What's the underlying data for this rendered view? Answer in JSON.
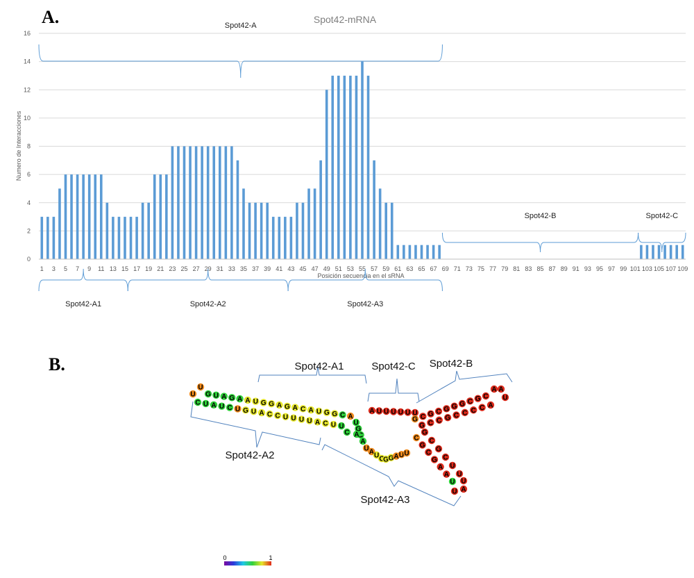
{
  "panels": {
    "a": "A.",
    "b": "B."
  },
  "chart_data": {
    "type": "bar",
    "title": "Spot42-mRNA",
    "xlabel": "Posición secuencia en el sRNA",
    "ylabel": "Numero de Interacciones",
    "ylim": [
      0,
      16
    ],
    "yticks": [
      0,
      2,
      4,
      6,
      8,
      10,
      12,
      14,
      16
    ],
    "grid": true,
    "color": "#5b9bd5",
    "x": [
      1,
      2,
      3,
      4,
      5,
      6,
      7,
      8,
      9,
      10,
      11,
      12,
      13,
      14,
      15,
      16,
      17,
      18,
      19,
      20,
      21,
      22,
      23,
      24,
      25,
      26,
      27,
      28,
      29,
      30,
      31,
      32,
      33,
      34,
      35,
      36,
      37,
      38,
      39,
      40,
      41,
      42,
      43,
      44,
      45,
      46,
      47,
      48,
      49,
      50,
      51,
      52,
      53,
      54,
      55,
      56,
      57,
      58,
      59,
      60,
      61,
      62,
      63,
      64,
      65,
      66,
      67,
      68,
      69,
      70,
      71,
      72,
      73,
      74,
      75,
      76,
      77,
      78,
      79,
      80,
      81,
      82,
      83,
      84,
      85,
      86,
      87,
      88,
      89,
      90,
      91,
      92,
      93,
      94,
      95,
      96,
      97,
      98,
      99,
      100,
      101,
      102,
      103,
      104,
      105,
      106,
      107,
      108,
      109
    ],
    "values": [
      3,
      3,
      3,
      5,
      6,
      6,
      6,
      6,
      6,
      6,
      6,
      4,
      3,
      3,
      3,
      3,
      3,
      4,
      4,
      6,
      6,
      6,
      8,
      8,
      8,
      8,
      8,
      8,
      8,
      8,
      8,
      8,
      8,
      7,
      5,
      4,
      4,
      4,
      4,
      3,
      3,
      3,
      3,
      4,
      4,
      5,
      5,
      7,
      12,
      13,
      13,
      13,
      13,
      13,
      14,
      13,
      7,
      5,
      4,
      4,
      1,
      1,
      1,
      1,
      1,
      1,
      1,
      1,
      0,
      0,
      0,
      0,
      0,
      0,
      0,
      0,
      0,
      0,
      0,
      0,
      0,
      0,
      0,
      0,
      0,
      0,
      0,
      0,
      0,
      0,
      0,
      0,
      0,
      0,
      0,
      0,
      0,
      0,
      0,
      0,
      0,
      1,
      1,
      1,
      1,
      1,
      1,
      1,
      1
    ],
    "xtick_labels": [
      "1",
      "3",
      "5",
      "7",
      "9",
      "11",
      "13",
      "15",
      "17",
      "19",
      "21",
      "23",
      "25",
      "27",
      "29",
      "31",
      "33",
      "35",
      "37",
      "39",
      "41",
      "43",
      "45",
      "47",
      "49",
      "51",
      "53",
      "55",
      "57",
      "59",
      "61",
      "63",
      "65",
      "67",
      "69",
      "71",
      "73",
      "75",
      "77",
      "79",
      "81",
      "83",
      "85",
      "87",
      "89",
      "91",
      "93",
      "95",
      "97",
      "99",
      "101",
      "103",
      "105",
      "107",
      "109"
    ],
    "annotations": {
      "top": [
        {
          "label": "Spot42-A",
          "from": 1,
          "to": 68
        }
      ],
      "middle": [
        {
          "label": "Spot42-B",
          "from": 69,
          "to": 101
        },
        {
          "label": "Spot42-C",
          "from": 102,
          "to": 109
        }
      ],
      "bottom": [
        {
          "label": "Spot42-A1",
          "from": 1,
          "to": 15
        },
        {
          "label": "Spot42-A2",
          "from": 16,
          "to": 42
        },
        {
          "label": "Spot42-A3",
          "from": 43,
          "to": 68
        }
      ]
    }
  },
  "structure": {
    "labels": {
      "a1": "Spot42-A1",
      "a2": "Spot42-A2",
      "a3": "Spot42-A3",
      "b": "Spot42-B",
      "c": "Spot42-C"
    },
    "scale": {
      "min": "0",
      "max": "1"
    },
    "colors": {
      "red": "#dd2a1b",
      "orange": "#f08a1c",
      "yellow": "#e6e62a",
      "green": "#2fd13a"
    }
  }
}
